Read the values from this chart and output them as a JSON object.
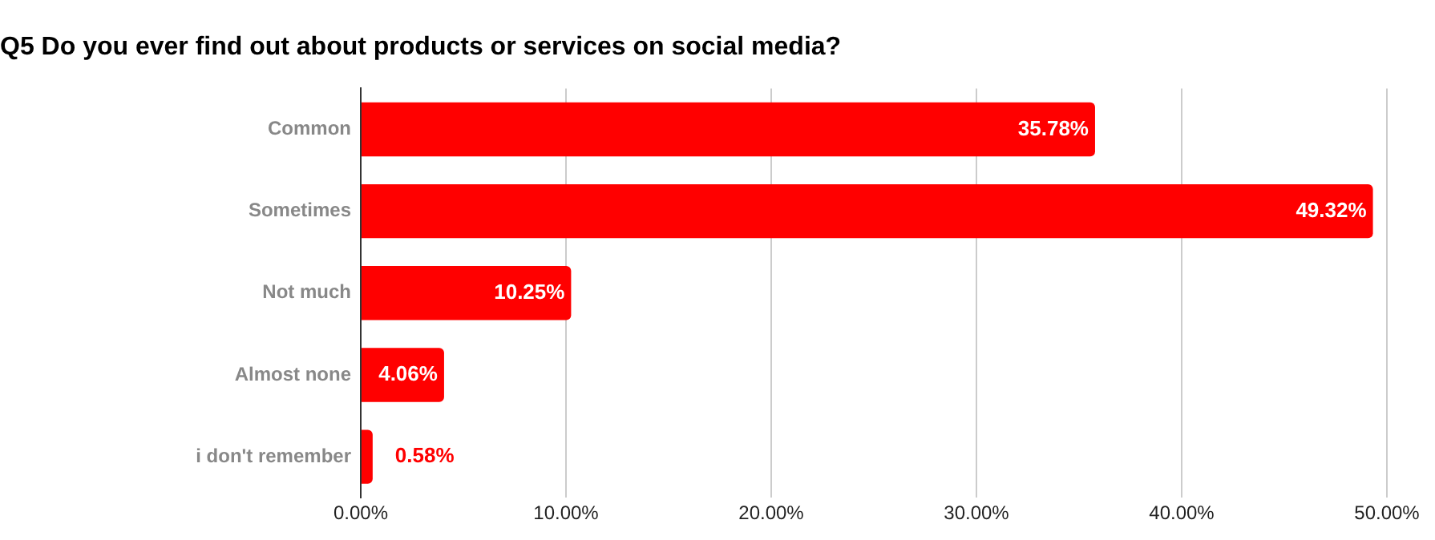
{
  "chart_data": {
    "type": "bar",
    "orientation": "horizontal",
    "title": "Q5 Do you ever find out about products or services on social media?",
    "categories": [
      "Common",
      "Sometimes",
      "Not much",
      "Almost none",
      "i don't remember"
    ],
    "values": [
      35.78,
      49.32,
      10.25,
      4.06,
      0.58
    ],
    "value_labels": [
      "35.78%",
      "49.32%",
      "10.25%",
      "4.06%",
      "0.58%"
    ],
    "color": "#ff0000",
    "xlim": [
      0,
      50
    ],
    "xticks": [
      {
        "value": 0,
        "label": "0.00%"
      },
      {
        "value": 10,
        "label": "10.00%"
      },
      {
        "value": 20,
        "label": "20.00%"
      },
      {
        "value": 30,
        "label": "30.00%"
      },
      {
        "value": 40,
        "label": "40.00%"
      },
      {
        "value": 50,
        "label": "50.00%"
      }
    ],
    "grid": "x",
    "legend": false
  }
}
